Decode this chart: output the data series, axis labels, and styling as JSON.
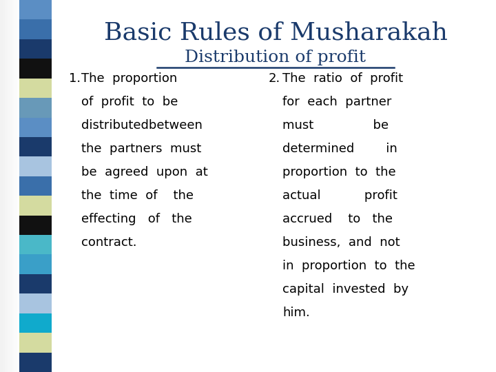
{
  "title": "Basic Rules of Musharakah",
  "subtitle": "Distribution of profit",
  "title_color": "#1a3a6b",
  "subtitle_color": "#1a3a6b",
  "body_color": "#000000",
  "background_color": "#ffffff",
  "title_fontsize": 26,
  "subtitle_fontsize": 18,
  "body_fontsize": 13,
  "number_fontsize": 13,
  "point1_number": "1.",
  "point1_lines": [
    "The  proportion",
    "of  profit  to  be",
    "distributedbetween",
    "the  partners  must",
    "be  agreed  upon  at",
    "the  time  of    the",
    "effecting   of   the",
    "contract."
  ],
  "point2_number": "2.",
  "point2_lines": [
    "The  ratio  of  profit",
    "for  each  partner",
    "must               be",
    "determined        in",
    "proportion  to  the",
    "actual           profit",
    "accrued    to   the",
    "business,  and  not",
    "in  proportion  to  the",
    "capital  invested  by",
    "him."
  ],
  "sidebar_colors": [
    "#5b8ec4",
    "#3a6faa",
    "#1a3a6b",
    "#111111",
    "#d4dba0",
    "#6899b8",
    "#5b8ec4",
    "#1a3a6b",
    "#a8c4e0",
    "#3a6faa",
    "#d4dba0",
    "#111111",
    "#4ab8c8",
    "#3a9fc8",
    "#1a3a6b",
    "#a8c4e0",
    "#10aacc",
    "#d4dba0",
    "#1a3a6b"
  ]
}
